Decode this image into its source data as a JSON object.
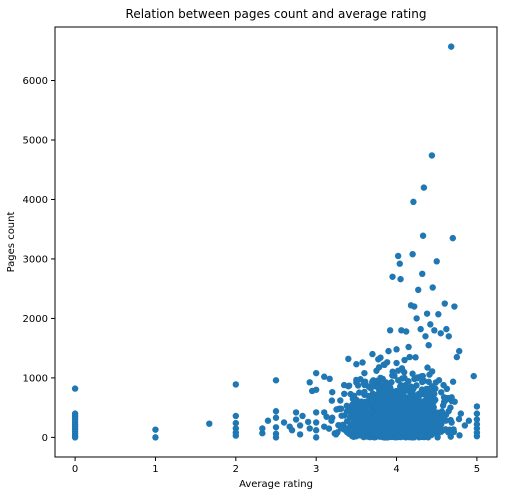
{
  "chart_data": {
    "type": "scatter",
    "title": "Relation between pages count and average rating",
    "xlabel": "Average rating",
    "ylabel": "Pages count",
    "xlim": [
      -0.25,
      5.25
    ],
    "ylim": [
      -330,
      6900
    ],
    "xticks": [
      0,
      1,
      2,
      3,
      4,
      5
    ],
    "yticks": [
      0,
      1000,
      2000,
      3000,
      4000,
      5000,
      6000
    ],
    "grid": false,
    "legend": "none",
    "colors": {
      "marker": "#1f77b4"
    },
    "series": [
      {
        "points": [
          [
            0,
            820
          ],
          [
            0,
            400
          ],
          [
            0,
            370
          ],
          [
            0,
            340
          ],
          [
            0,
            300
          ],
          [
            0,
            260
          ],
          [
            0,
            220
          ],
          [
            0,
            180
          ],
          [
            0,
            140
          ],
          [
            0,
            100
          ],
          [
            0,
            60
          ],
          [
            0,
            20
          ],
          [
            0,
            0
          ],
          [
            1,
            130
          ],
          [
            1,
            0
          ],
          [
            1.67,
            230
          ],
          [
            2,
            890
          ],
          [
            2,
            360
          ],
          [
            2,
            240
          ],
          [
            2,
            150
          ],
          [
            2,
            80
          ],
          [
            2,
            30
          ],
          [
            2.33,
            150
          ],
          [
            2.33,
            70
          ],
          [
            2.4,
            280
          ],
          [
            2.5,
            960
          ],
          [
            2.5,
            440
          ],
          [
            2.5,
            330
          ],
          [
            2.5,
            170
          ],
          [
            2.5,
            60
          ],
          [
            2.5,
            0
          ],
          [
            2.6,
            250
          ],
          [
            2.67,
            180
          ],
          [
            2.7,
            120
          ],
          [
            2.75,
            420
          ],
          [
            2.75,
            300
          ],
          [
            2.8,
            200
          ],
          [
            2.8,
            50
          ],
          [
            2.83,
            360
          ],
          [
            2.9,
            260
          ],
          [
            2.92,
            150
          ],
          [
            2.95,
            780
          ],
          [
            3,
            1080
          ],
          [
            3,
            800
          ],
          [
            3,
            420
          ],
          [
            3,
            250
          ],
          [
            3,
            120
          ],
          [
            3,
            0
          ],
          [
            3.1,
            1020
          ],
          [
            3.1,
            420
          ],
          [
            3.1,
            180
          ],
          [
            3.2,
            760
          ],
          [
            3.2,
            330
          ],
          [
            3.3,
            620
          ],
          [
            3.3,
            200
          ],
          [
            3.4,
            1320
          ],
          [
            3.4,
            860
          ],
          [
            3.45,
            550
          ],
          [
            3.5,
            1230
          ],
          [
            3.5,
            920
          ],
          [
            3.55,
            420
          ],
          [
            3.6,
            1080
          ],
          [
            3.6,
            720
          ],
          [
            3.65,
            300
          ],
          [
            3.7,
            1400
          ],
          [
            3.7,
            860
          ],
          [
            3.75,
            1120
          ],
          [
            3.8,
            1340
          ],
          [
            3.8,
            1000
          ],
          [
            3.85,
            1220
          ],
          [
            3.9,
            1450
          ],
          [
            3.92,
            1800
          ],
          [
            3.95,
            2700
          ],
          [
            4,
            1480
          ],
          [
            4,
            1250
          ],
          [
            4.02,
            3050
          ],
          [
            4.04,
            2920
          ],
          [
            4.05,
            2660
          ],
          [
            4.06,
            1800
          ],
          [
            4.1,
            1300
          ],
          [
            4.12,
            1780
          ],
          [
            4.15,
            1520
          ],
          [
            4.18,
            2220
          ],
          [
            4.2,
            3080
          ],
          [
            4.21,
            3960
          ],
          [
            4.22,
            2200
          ],
          [
            4.25,
            2000
          ],
          [
            4.27,
            2480
          ],
          [
            4.3,
            1820
          ],
          [
            4.32,
            2750
          ],
          [
            4.33,
            3390
          ],
          [
            4.34,
            4200
          ],
          [
            4.36,
            1700
          ],
          [
            4.38,
            2080
          ],
          [
            4.4,
            1550
          ],
          [
            4.42,
            1900
          ],
          [
            4.44,
            4740
          ],
          [
            4.45,
            2520
          ],
          [
            4.47,
            1800
          ],
          [
            4.5,
            2960
          ],
          [
            4.52,
            2070
          ],
          [
            4.55,
            1750
          ],
          [
            4.6,
            2250
          ],
          [
            4.62,
            1820
          ],
          [
            4.65,
            1700
          ],
          [
            4.68,
            6570
          ],
          [
            4.7,
            3350
          ],
          [
            4.72,
            2200
          ],
          [
            4.75,
            1350
          ],
          [
            4.78,
            1450
          ],
          [
            4.8,
            400
          ],
          [
            4.85,
            200
          ],
          [
            4.9,
            280
          ],
          [
            5,
            520
          ],
          [
            5,
            400
          ],
          [
            5,
            300
          ],
          [
            5,
            220
          ],
          [
            5,
            150
          ],
          [
            5,
            80
          ],
          [
            5,
            20
          ]
        ]
      }
    ]
  }
}
